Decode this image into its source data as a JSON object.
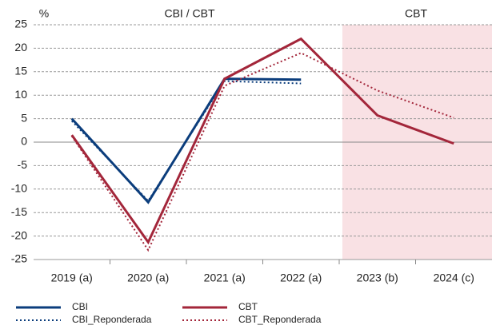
{
  "chart_data": {
    "type": "line",
    "y_unit": "%",
    "annotations": [
      "CBI / CBT",
      "CBT"
    ],
    "categories": [
      "2019 (a)",
      "2020 (a)",
      "2021 (a)",
      "2022 (a)",
      "2023 (b)",
      "2024 (c)"
    ],
    "series": [
      {
        "name": "CBI",
        "color": "#0b3d7c",
        "dash": "solid",
        "values": [
          5,
          -12.8,
          13.5,
          13.3,
          null,
          null
        ]
      },
      {
        "name": "CBI_Reponderada",
        "color": "#0b3d7c",
        "dash": "dotted",
        "values": [
          4.5,
          -12.5,
          13,
          12.5,
          null,
          null
        ]
      },
      {
        "name": "CBT",
        "color": "#a3263a",
        "dash": "solid",
        "values": [
          1.5,
          -21.3,
          13.5,
          22,
          5.7,
          -0.3
        ]
      },
      {
        "name": "CBT_Reponderada",
        "color": "#a3263a",
        "dash": "dotted",
        "values": [
          1.3,
          -23,
          12,
          19,
          11,
          5.2
        ]
      }
    ],
    "ylim": [
      -25,
      25
    ],
    "yticks": [
      -25,
      -20,
      -15,
      -10,
      -5,
      0,
      5,
      10,
      15,
      20,
      25
    ],
    "grid": true
  }
}
